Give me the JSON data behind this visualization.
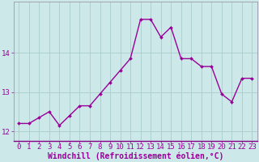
{
  "x": [
    0,
    1,
    2,
    3,
    4,
    5,
    6,
    7,
    8,
    9,
    10,
    11,
    12,
    13,
    14,
    15,
    16,
    17,
    18,
    19,
    20,
    21,
    22,
    23
  ],
  "y": [
    12.2,
    12.2,
    12.35,
    12.5,
    12.15,
    12.4,
    12.65,
    12.65,
    12.95,
    13.25,
    13.55,
    13.85,
    14.85,
    14.85,
    14.4,
    14.65,
    13.85,
    13.85,
    13.65,
    13.65,
    12.95,
    12.75,
    13.35,
    13.35
  ],
  "line_color": "#990099",
  "marker": "D",
  "markersize": 2,
  "linewidth": 1.0,
  "bg_color": "#cce8e8",
  "grid_color": "#aacccc",
  "xlabel": "Windchill (Refroidissement éolien,°C)",
  "xlabel_color": "#990099",
  "tick_color": "#990099",
  "spine_color": "#9999aa",
  "ylim": [
    11.75,
    15.3
  ],
  "xlim": [
    -0.5,
    23.5
  ],
  "yticks": [
    12,
    13,
    14
  ],
  "xticks": [
    0,
    1,
    2,
    3,
    4,
    5,
    6,
    7,
    8,
    9,
    10,
    11,
    12,
    13,
    14,
    15,
    16,
    17,
    18,
    19,
    20,
    21,
    22,
    23
  ],
  "xlabel_fontsize": 7,
  "tick_fontsize": 6.5,
  "ylabel_fontsize": 7
}
